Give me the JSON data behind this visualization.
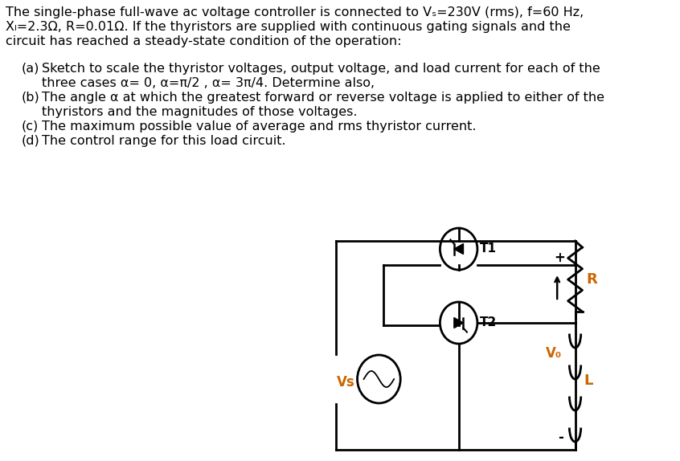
{
  "background_color": "#ffffff",
  "text_color": "#000000",
  "orange_color": "#cc6600",
  "title_line1": "The single-phase full-wave ac voltage controller is connected to Vₛ=230V (rms), f=60 Hz,",
  "title_line2": "Xₗ=2.3Ω, R=0.01Ω. If the thyristors are supplied with continuous gating signals and the",
  "title_line3": "circuit has reached a steady-state condition of the operation:",
  "item_a1": "Sketch to scale the thyristor voltages, output voltage, and load current for each of the",
  "item_a2": "three cases α= 0, α=π/2 , α= 3π/4. Determine also,",
  "item_b1": "The angle α at which the greatest forward or reverse voltage is applied to either of the",
  "item_b2": "thyristors and the magnitudes of those voltages.",
  "item_c": "The maximum possible value of average and rms thyristor current.",
  "item_d": "The control range for this load circuit.",
  "label_a": "(a)",
  "label_b": "(b)",
  "label_c": "(c)",
  "label_d": "(d)",
  "vs_label": "Vs",
  "t1_label": "T1",
  "t2_label": "T2",
  "r_label": "R",
  "l_label": "L",
  "v0_label": "V₀",
  "plus_label": "+",
  "minus_label": "-",
  "font_size": 11.5,
  "lw": 2.0
}
